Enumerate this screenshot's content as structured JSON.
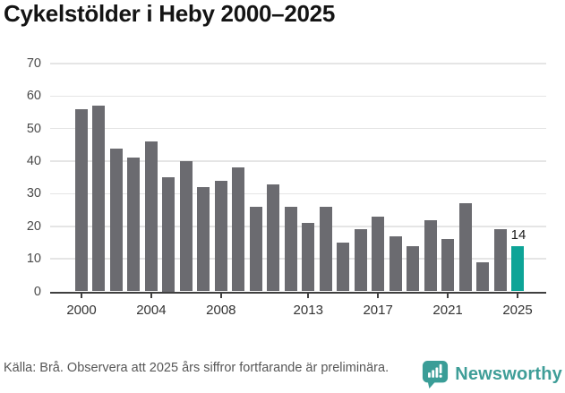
{
  "header": {
    "title": "Cykelstölder i Heby 2000–2025"
  },
  "chart_data": {
    "type": "bar",
    "title": "Cykelstölder i Heby 2000–2025",
    "x": [
      2000,
      2001,
      2002,
      2003,
      2004,
      2005,
      2006,
      2007,
      2008,
      2009,
      2010,
      2011,
      2012,
      2013,
      2014,
      2015,
      2016,
      2017,
      2018,
      2019,
      2020,
      2021,
      2022,
      2023,
      2024,
      2025
    ],
    "values": [
      56,
      57,
      44,
      41,
      46,
      35,
      40,
      32,
      34,
      38,
      26,
      33,
      26,
      21,
      26,
      15,
      19,
      23,
      17,
      14,
      22,
      16,
      27,
      9,
      19,
      14
    ],
    "highlight_index": 25,
    "highlight_value_label": "14",
    "bar_color": "#6b6b70",
    "highlight_color": "#0da497",
    "xticks": [
      2000,
      2004,
      2008,
      2013,
      2017,
      2021,
      2025
    ],
    "yticks": [
      0,
      10,
      20,
      30,
      40,
      50,
      60,
      70
    ],
    "ylim": [
      0,
      70
    ],
    "grid": true,
    "legend": null,
    "xlabel": "",
    "ylabel": ""
  },
  "footer": {
    "source_note": "Källa: Brå. Observera att 2025 års siffror fortfarande är preliminära.",
    "brand_name": "Newsworthy"
  },
  "colors": {
    "brand_teal": "#3a9d97",
    "grid": "#e5e5e5",
    "axis": "#3f3f3f"
  }
}
